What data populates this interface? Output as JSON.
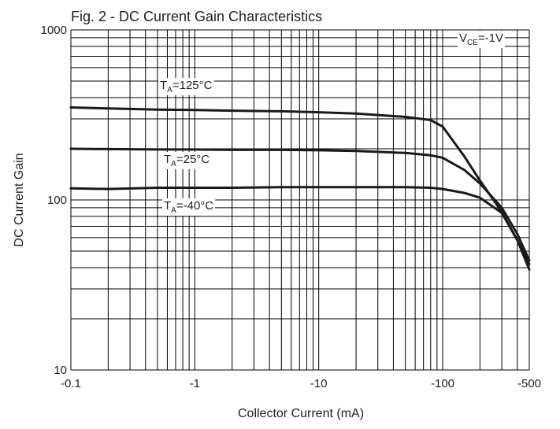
{
  "chart_data": {
    "type": "line",
    "title": "Fig. 2 - DC Current Gain Characteristics",
    "xlabel": "Collector Current (mA)",
    "ylabel": "DC Current Gain",
    "x_scale": "log",
    "y_scale": "log",
    "xlim": [
      -0.1,
      -500
    ],
    "ylim": [
      10,
      1000
    ],
    "grid": true,
    "x_ticks": [
      "-0.1",
      "-1",
      "-10",
      "-100",
      "-500"
    ],
    "y_ticks": [
      "10",
      "100",
      "1000"
    ],
    "annotations": {
      "vce": {
        "main": "V",
        "sub": "CE",
        "rest": "=-1V"
      },
      "t125": {
        "main": "T",
        "sub": "A",
        "rest": "=125°C"
      },
      "t25": {
        "main": "T",
        "sub": "A",
        "rest": "=25°C"
      },
      "tm40": {
        "main": "T",
        "sub": "A",
        "rest": "=-40°C"
      }
    },
    "series": [
      {
        "x": [
          -0.1,
          -0.2,
          -0.5,
          -1,
          -2,
          -5,
          -10,
          -20,
          -50,
          -80,
          -100,
          -150,
          -200,
          -300,
          -400,
          -500
        ],
        "y": [
          350,
          345,
          340,
          338,
          335,
          332,
          328,
          322,
          308,
          295,
          270,
          180,
          130,
          85,
          58,
          42
        ]
      },
      {
        "x": [
          -0.1,
          -0.2,
          -0.5,
          -1,
          -2,
          -5,
          -10,
          -20,
          -50,
          -80,
          -100,
          -150,
          -200,
          -300,
          -400,
          -500
        ],
        "y": [
          200,
          199,
          198,
          198,
          197,
          197,
          196,
          194,
          189,
          183,
          177,
          150,
          125,
          90,
          63,
          44
        ]
      },
      {
        "x": [
          -0.1,
          -0.2,
          -0.5,
          -1,
          -2,
          -5,
          -10,
          -20,
          -50,
          -80,
          -100,
          -150,
          -200,
          -300,
          -400,
          -500
        ],
        "y": [
          117,
          116,
          118,
          118,
          118,
          119,
          119,
          119,
          119,
          118,
          116,
          110,
          103,
          84,
          58,
          39
        ]
      }
    ]
  }
}
